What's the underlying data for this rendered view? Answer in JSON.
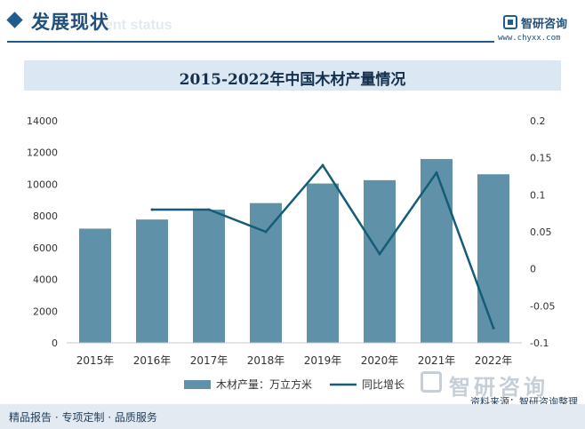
{
  "header": {
    "title": "发展现状",
    "subtitle": "ent status"
  },
  "brand": {
    "name": "智研咨询",
    "url": "www.chyxx.com",
    "watermark": "智研咨询"
  },
  "footer": {
    "left": "精品报告 · 专项定制 · 品质服务",
    "source": "资料来源：智研咨询整理"
  },
  "colors": {
    "bar": "#5f92a9",
    "line": "#145c78",
    "axis_text": "#333333",
    "accent": "#1f5c8f"
  },
  "chart_data": {
    "type": "bar",
    "title": "2015-2022年中国木材产量情况",
    "categories": [
      "2015年",
      "2016年",
      "2017年",
      "2018年",
      "2019年",
      "2020年",
      "2021年",
      "2022年"
    ],
    "series": [
      {
        "name": "木材产量：万立方米",
        "type": "bar",
        "axis": "left",
        "values": [
          7200,
          7776,
          8399,
          8811,
          10046,
          10257,
          11589,
          10628
        ]
      },
      {
        "name": "同比增长",
        "type": "line",
        "axis": "right",
        "values": [
          null,
          0.08,
          0.08,
          0.05,
          0.14,
          0.02,
          0.13,
          -0.08
        ]
      }
    ],
    "y_left": {
      "min": 0,
      "max": 14000,
      "ticks": [
        0,
        2000,
        4000,
        6000,
        8000,
        10000,
        12000,
        14000
      ]
    },
    "y_right": {
      "min": -0.1,
      "max": 0.2,
      "ticks": [
        -0.1,
        -0.05,
        0,
        0.05,
        0.1,
        0.15,
        0.2
      ],
      "tick_labels": [
        "-0.1",
        "-0.05",
        "0",
        "0.05",
        "0.1",
        "0.15",
        "0.2"
      ]
    },
    "grid": false,
    "legend_position": "bottom"
  }
}
